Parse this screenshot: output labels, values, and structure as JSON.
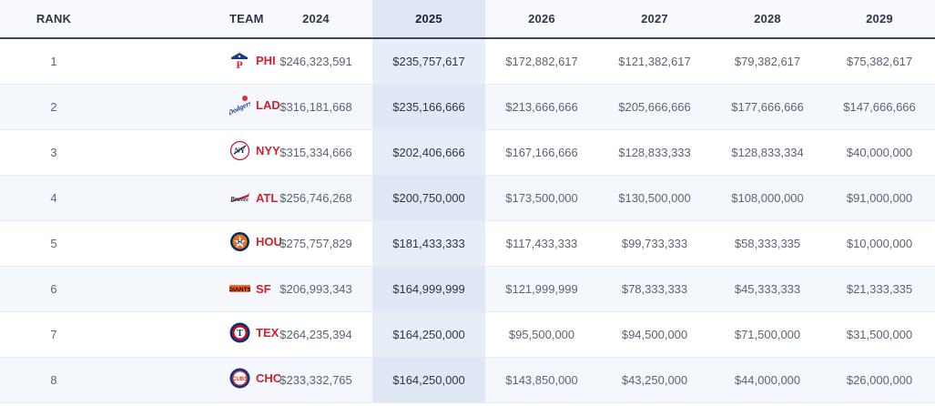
{
  "table": {
    "headers": {
      "rank": "RANK",
      "team": "TEAM",
      "years": [
        "2024",
        "2025",
        "2026",
        "2027",
        "2028",
        "2029"
      ]
    },
    "highlighted_year": "2025",
    "rows": [
      {
        "rank": "1",
        "team": "PHI",
        "logo": "phillies-logo-icon",
        "values": [
          "$246,323,591",
          "$235,757,617",
          "$172,882,617",
          "$121,382,617",
          "$79,382,617",
          "$75,382,617"
        ]
      },
      {
        "rank": "2",
        "team": "LAD",
        "logo": "dodgers-logo-icon",
        "values": [
          "$316,181,668",
          "$235,166,666",
          "$213,666,666",
          "$205,666,666",
          "$177,666,666",
          "$147,666,666"
        ]
      },
      {
        "rank": "3",
        "team": "NYY",
        "logo": "yankees-logo-icon",
        "values": [
          "$315,334,666",
          "$202,406,666",
          "$167,166,666",
          "$128,833,333",
          "$128,833,334",
          "$40,000,000"
        ]
      },
      {
        "rank": "4",
        "team": "ATL",
        "logo": "braves-logo-icon",
        "values": [
          "$256,746,268",
          "$200,750,000",
          "$173,500,000",
          "$130,500,000",
          "$108,000,000",
          "$91,000,000"
        ]
      },
      {
        "rank": "5",
        "team": "HOU",
        "logo": "astros-logo-icon",
        "values": [
          "$275,757,829",
          "$181,433,333",
          "$117,433,333",
          "$99,733,333",
          "$58,333,335",
          "$10,000,000"
        ]
      },
      {
        "rank": "6",
        "team": "SF",
        "logo": "giants-logo-icon",
        "values": [
          "$206,993,343",
          "$164,999,999",
          "$121,999,999",
          "$78,333,333",
          "$45,333,333",
          "$21,333,335"
        ]
      },
      {
        "rank": "7",
        "team": "TEX",
        "logo": "rangers-logo-icon",
        "values": [
          "$264,235,394",
          "$164,250,000",
          "$95,500,000",
          "$94,500,000",
          "$71,500,000",
          "$31,500,000"
        ]
      },
      {
        "rank": "8",
        "team": "CHC",
        "logo": "cubs-logo-icon",
        "values": [
          "$233,332,765",
          "$164,250,000",
          "$143,850,000",
          "$43,250,000",
          "$44,000,000",
          "$26,000,000"
        ]
      }
    ]
  },
  "colors": {
    "team_abbr": "#d0202f",
    "highlight_column": "#e8eef8",
    "header_border": "#3c4a5c"
  }
}
